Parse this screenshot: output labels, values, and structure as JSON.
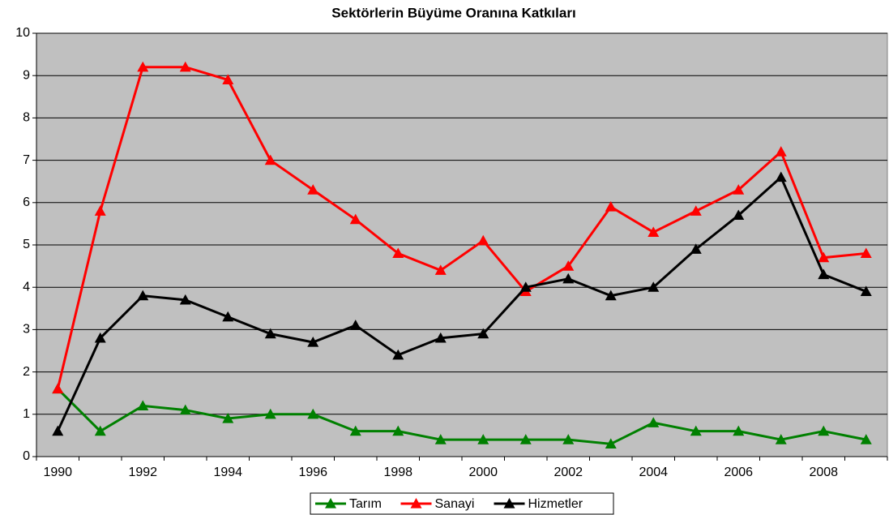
{
  "chart_data": {
    "type": "line",
    "title": "Sektörlerin Büyüme Oranına Katkıları",
    "categories": [
      1990,
      null,
      1992,
      null,
      1994,
      null,
      1996,
      null,
      1998,
      null,
      2000,
      null,
      2002,
      null,
      2004,
      null,
      2006,
      null,
      2008,
      null
    ],
    "series": [
      {
        "name": "Tarım",
        "color": "#008000",
        "values": [
          1.6,
          0.6,
          1.2,
          1.1,
          0.9,
          1.0,
          1.0,
          0.6,
          0.6,
          0.4,
          0.4,
          0.4,
          0.4,
          0.3,
          0.8,
          0.6,
          0.6,
          0.4,
          0.6,
          0.4
        ]
      },
      {
        "name": "Sanayi",
        "color": "#ff0000",
        "values": [
          1.6,
          5.8,
          9.2,
          9.2,
          8.9,
          7.0,
          6.3,
          5.6,
          4.8,
          4.4,
          5.1,
          3.9,
          4.5,
          5.9,
          5.3,
          5.8,
          6.3,
          7.2,
          4.7,
          4.8
        ]
      },
      {
        "name": "Hizmetler",
        "color": "#000000",
        "values": [
          0.6,
          2.8,
          3.8,
          3.7,
          3.3,
          2.9,
          2.7,
          3.1,
          2.4,
          2.8,
          2.9,
          4.0,
          4.2,
          3.8,
          4.0,
          4.9,
          5.7,
          6.6,
          4.3,
          3.9
        ]
      }
    ],
    "ylim": [
      0,
      10
    ],
    "yticks": [
      0,
      1,
      2,
      3,
      4,
      5,
      6,
      7,
      8,
      9,
      10
    ],
    "grid": true,
    "legend": "bottom"
  }
}
